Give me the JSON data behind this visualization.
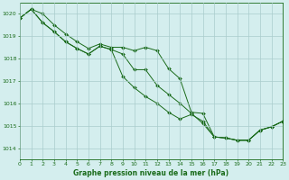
{
  "title": "Graphe pression niveau de la mer (hPa)",
  "background_color": "#d4eeee",
  "grid_color": "#aacccc",
  "line_color": "#1a6b1a",
  "xlim": [
    0,
    23
  ],
  "ylim": [
    1013.5,
    1020.5
  ],
  "yticks": [
    1014,
    1015,
    1016,
    1017,
    1018,
    1019,
    1020
  ],
  "xticks": [
    0,
    1,
    2,
    3,
    4,
    5,
    6,
    7,
    8,
    9,
    10,
    11,
    12,
    13,
    14,
    15,
    16,
    17,
    18,
    19,
    20,
    21,
    22,
    23
  ],
  "series1": {
    "x": [
      0,
      1,
      2,
      3,
      4,
      5,
      6,
      7,
      8,
      9,
      10,
      11,
      12,
      13,
      14,
      15,
      16,
      17,
      18,
      19,
      20,
      21,
      22,
      23
    ],
    "y": [
      1019.8,
      1020.2,
      1020.0,
      1019.5,
      1019.1,
      1018.75,
      1018.45,
      1018.65,
      1018.5,
      1018.5,
      1018.35,
      1018.5,
      1018.35,
      1017.55,
      1017.1,
      1015.6,
      1015.55,
      1014.5,
      1014.45,
      1014.35,
      1014.35,
      1014.8,
      1014.95,
      1015.2
    ]
  },
  "series2": {
    "x": [
      0,
      1,
      2,
      3,
      4,
      5,
      6,
      7,
      8,
      9,
      10,
      11,
      12,
      13,
      14,
      15,
      16,
      17,
      18,
      19,
      20,
      21,
      22,
      23
    ],
    "y": [
      1019.8,
      1020.2,
      1019.6,
      1019.2,
      1018.75,
      1018.45,
      1018.2,
      1018.55,
      1018.4,
      1018.2,
      1017.5,
      1017.5,
      1016.8,
      1016.4,
      1016.0,
      1015.55,
      1015.1,
      1014.5,
      1014.45,
      1014.35,
      1014.35,
      1014.8,
      1014.95,
      1015.2
    ]
  },
  "series3": {
    "x": [
      0,
      1,
      2,
      3,
      4,
      5,
      6,
      7,
      8,
      9,
      10,
      11,
      12,
      13,
      14,
      15,
      16,
      17,
      18,
      19,
      20,
      21,
      22,
      23
    ],
    "y": [
      1019.8,
      1020.2,
      1019.6,
      1019.2,
      1018.75,
      1018.45,
      1018.2,
      1018.55,
      1018.4,
      1017.2,
      1016.7,
      1016.3,
      1016.0,
      1015.6,
      1015.3,
      1015.5,
      1015.2,
      1014.5,
      1014.45,
      1014.35,
      1014.35,
      1014.8,
      1014.95,
      1015.2
    ]
  }
}
